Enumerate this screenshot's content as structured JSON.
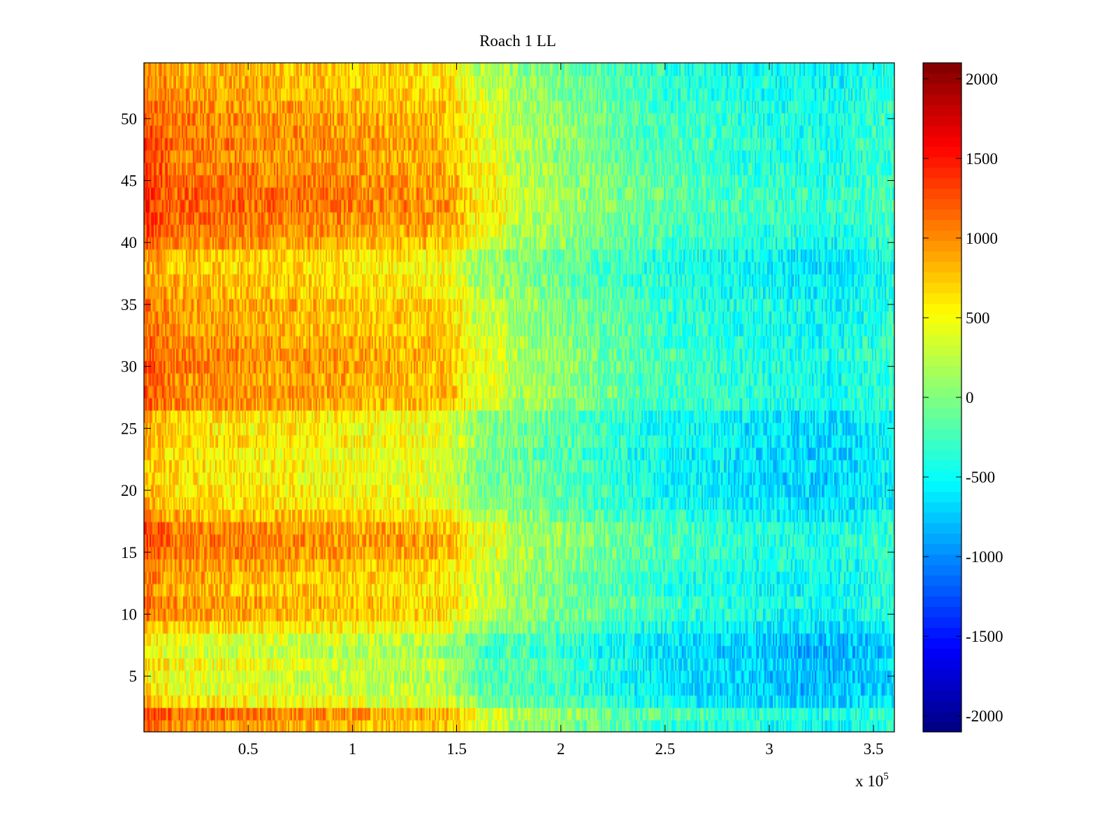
{
  "chart_data": {
    "type": "heatmap",
    "title": "Roach 1 LL",
    "xlabel": "",
    "ylabel": "",
    "x_multiplier_label": "x 10",
    "x_multiplier_exponent": "5",
    "xlim": [
      0,
      360000
    ],
    "ylim": [
      0.5,
      54.5
    ],
    "x_ticks": [
      {
        "value": 50000,
        "label": "0.5"
      },
      {
        "value": 100000,
        "label": "1"
      },
      {
        "value": 150000,
        "label": "1.5"
      },
      {
        "value": 200000,
        "label": "2"
      },
      {
        "value": 250000,
        "label": "2.5"
      },
      {
        "value": 300000,
        "label": "3"
      },
      {
        "value": 350000,
        "label": "3.5"
      }
    ],
    "y_ticks": [
      {
        "value": 5,
        "label": "5"
      },
      {
        "value": 10,
        "label": "10"
      },
      {
        "value": 15,
        "label": "15"
      },
      {
        "value": 20,
        "label": "20"
      },
      {
        "value": 25,
        "label": "25"
      },
      {
        "value": 30,
        "label": "30"
      },
      {
        "value": 35,
        "label": "35"
      },
      {
        "value": 40,
        "label": "40"
      },
      {
        "value": 45,
        "label": "45"
      },
      {
        "value": 50,
        "label": "50"
      }
    ],
    "colorbar": {
      "colormap": "jet",
      "clim": [
        -2100,
        2100
      ],
      "ticks": [
        {
          "value": 2000,
          "label": "2000"
        },
        {
          "value": 1500,
          "label": "1500"
        },
        {
          "value": 1000,
          "label": "1000"
        },
        {
          "value": 500,
          "label": "500"
        },
        {
          "value": 0,
          "label": "0"
        },
        {
          "value": -500,
          "label": "-500"
        },
        {
          "value": -1000,
          "label": "-1000"
        },
        {
          "value": -1500,
          "label": "-1500"
        },
        {
          "value": -2000,
          "label": "-2000"
        }
      ]
    },
    "rows": 54,
    "x_profile_approx": [
      {
        "x": 0,
        "value": 900
      },
      {
        "x": 15000,
        "value": 700
      },
      {
        "x": 50000,
        "value": 650
      },
      {
        "x": 100000,
        "value": 550
      },
      {
        "x": 145000,
        "value": 450
      },
      {
        "x": 160000,
        "value": 80
      },
      {
        "x": 200000,
        "value": -150
      },
      {
        "x": 250000,
        "value": -450
      },
      {
        "x": 300000,
        "value": -600
      },
      {
        "x": 330000,
        "value": -650
      },
      {
        "x": 360000,
        "value": -500
      }
    ],
    "row_offsets_approx": {
      "1": 250,
      "2": 400,
      "3": -100,
      "4": -250,
      "5": -300,
      "6": -200,
      "7": -350,
      "8": -250,
      "9": 0,
      "10": 200,
      "11": 250,
      "12": 150,
      "13": 200,
      "14": 250,
      "15": 350,
      "16": 400,
      "17": 350,
      "18": 150,
      "19": 0,
      "20": -50,
      "21": -100,
      "22": -50,
      "23": -100,
      "24": 0,
      "25": -50,
      "26": 0,
      "27": 300,
      "28": 350,
      "29": 300,
      "30": 350,
      "31": 350,
      "32": 300,
      "33": 250,
      "34": 200,
      "35": 250,
      "36": 150,
      "37": 100,
      "38": 50,
      "39": 100,
      "40": 300,
      "41": 400,
      "42": 450,
      "43": 500,
      "44": 500,
      "45": 450,
      "46": 400,
      "47": 350,
      "48": 400,
      "49": 350,
      "50": 350,
      "51": 300,
      "52": 250,
      "53": 200,
      "54": 150
    },
    "noise_amplitude": 300
  }
}
